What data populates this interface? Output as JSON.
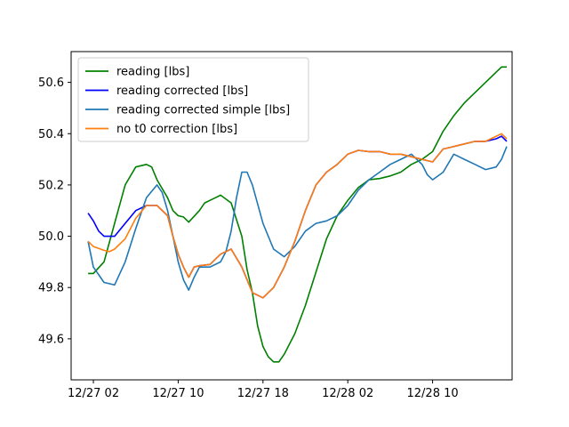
{
  "chart_data": {
    "type": "line",
    "title": "",
    "xlabel": "",
    "ylabel": "",
    "x_ticks": [
      "12/27 02",
      "12/27 10",
      "12/27 18",
      "12/28 02",
      "12/28 10"
    ],
    "x_tick_hours": [
      2,
      10,
      18,
      26,
      34
    ],
    "y_ticks": [
      "49.6",
      "49.8",
      "50.0",
      "50.2",
      "50.4",
      "50.6"
    ],
    "y_tick_values": [
      49.6,
      49.8,
      50.0,
      50.2,
      50.4,
      50.6
    ],
    "xlim_hours": [
      -0.1,
      41.5
    ],
    "ylim": [
      49.44,
      50.72
    ],
    "legend_position": "top-left",
    "grid": false,
    "series": [
      {
        "name": "reading [lbs]",
        "color": "#008000",
        "x": [
          1.5,
          2,
          3,
          4,
          5,
          6,
          7,
          7.5,
          8,
          9,
          9.5,
          10,
          10.5,
          11,
          12,
          12.5,
          13,
          13.5,
          14,
          15,
          16,
          16.5,
          17,
          17.5,
          18,
          18.5,
          19,
          19.5,
          20,
          21,
          22,
          23,
          24,
          25,
          26,
          27,
          28,
          29,
          30,
          31,
          32,
          33,
          34,
          35,
          36,
          37,
          38,
          39,
          40,
          40.5,
          41
        ],
        "y": [
          49.855,
          49.855,
          49.9,
          50.05,
          50.2,
          50.27,
          50.28,
          50.27,
          50.22,
          50.15,
          50.1,
          50.08,
          50.075,
          50.055,
          50.1,
          50.13,
          50.14,
          50.15,
          50.16,
          50.13,
          50.0,
          49.87,
          49.78,
          49.65,
          49.57,
          49.53,
          49.51,
          49.51,
          49.54,
          49.62,
          49.73,
          49.86,
          49.99,
          50.08,
          50.14,
          50.19,
          50.22,
          50.225,
          50.235,
          50.25,
          50.28,
          50.3,
          50.33,
          50.41,
          50.47,
          50.52,
          50.56,
          50.6,
          50.64,
          50.66,
          50.66
        ]
      },
      {
        "name": "reading corrected [lbs]",
        "color": "#0000ff",
        "x": [
          1.5,
          2,
          2.5,
          3,
          4,
          5,
          6,
          7,
          8,
          9,
          9.5,
          10,
          10.5,
          11,
          11.5,
          12,
          13,
          14,
          15,
          16,
          17,
          18,
          19,
          20,
          21,
          22,
          23,
          24,
          25,
          26,
          27,
          28,
          29,
          30,
          31,
          32,
          33,
          34,
          35,
          36,
          37,
          38,
          39,
          40,
          40.5,
          41
        ],
        "y": [
          50.09,
          50.06,
          50.02,
          50.0,
          50.0,
          50.05,
          50.1,
          50.12,
          50.12,
          50.08,
          50.0,
          49.93,
          49.88,
          49.84,
          49.88,
          49.885,
          49.89,
          49.93,
          49.95,
          49.88,
          49.78,
          49.76,
          49.8,
          49.88,
          49.98,
          50.1,
          50.2,
          50.25,
          50.28,
          50.32,
          50.335,
          50.33,
          50.33,
          50.32,
          50.32,
          50.31,
          50.3,
          50.29,
          50.34,
          50.35,
          50.36,
          50.37,
          50.37,
          50.38,
          50.39,
          50.37
        ]
      },
      {
        "name": "reading corrected simple [lbs]",
        "color": "#1f77b4",
        "x": [
          1.5,
          2,
          3,
          4,
          5,
          6,
          7,
          8,
          8.5,
          9,
          9.5,
          10,
          10.5,
          11,
          11.5,
          12,
          13,
          14,
          14.5,
          15,
          15.5,
          16,
          16.5,
          17,
          18,
          19,
          20,
          21,
          22,
          23,
          24,
          25,
          26,
          27,
          28,
          29,
          30,
          31,
          32,
          33,
          33.5,
          34,
          35,
          36,
          37,
          38,
          39,
          40,
          40.5,
          41
        ],
        "y": [
          49.98,
          49.88,
          49.82,
          49.81,
          49.9,
          50.03,
          50.15,
          50.2,
          50.17,
          50.1,
          50.0,
          49.9,
          49.83,
          49.79,
          49.84,
          49.88,
          49.88,
          49.9,
          49.94,
          50.02,
          50.15,
          50.25,
          50.25,
          50.2,
          50.05,
          49.95,
          49.92,
          49.96,
          50.02,
          50.05,
          50.06,
          50.08,
          50.12,
          50.18,
          50.22,
          50.25,
          50.28,
          50.3,
          50.32,
          50.28,
          50.24,
          50.22,
          50.25,
          50.32,
          50.3,
          50.28,
          50.26,
          50.27,
          50.3,
          50.35
        ]
      },
      {
        "name": "no t0 correction [lbs]",
        "color": "#ff7f0e",
        "x": [
          1.5,
          2,
          3,
          3.5,
          4,
          5,
          6,
          7,
          8,
          9,
          9.5,
          10,
          10.5,
          11,
          11.5,
          12,
          13,
          14,
          15,
          16,
          17,
          18,
          19,
          20,
          21,
          22,
          23,
          24,
          25,
          26,
          27,
          28,
          29,
          30,
          31,
          32,
          33,
          34,
          35,
          36,
          37,
          38,
          39,
          40,
          40.5,
          41
        ],
        "y": [
          49.98,
          49.96,
          49.945,
          49.94,
          49.95,
          49.99,
          50.07,
          50.12,
          50.12,
          50.08,
          50.0,
          49.93,
          49.88,
          49.84,
          49.88,
          49.885,
          49.89,
          49.93,
          49.95,
          49.88,
          49.78,
          49.76,
          49.8,
          49.88,
          49.98,
          50.1,
          50.2,
          50.25,
          50.28,
          50.32,
          50.335,
          50.33,
          50.33,
          50.32,
          50.32,
          50.31,
          50.3,
          50.29,
          50.34,
          50.35,
          50.36,
          50.37,
          50.37,
          50.39,
          50.4,
          50.38
        ]
      }
    ]
  }
}
